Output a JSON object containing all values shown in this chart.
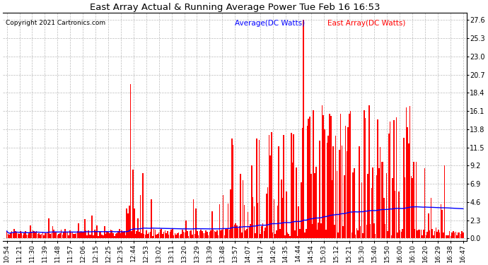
{
  "title": "East Array Actual & Running Average Power Tue Feb 16 16:53",
  "copyright": "Copyright 2021 Cartronics.com",
  "legend_avg": "Average(DC Watts)",
  "legend_east": "East Array(DC Watts)",
  "yticks": [
    0.0,
    2.3,
    4.6,
    6.9,
    9.2,
    11.5,
    13.8,
    16.1,
    18.4,
    20.7,
    23.0,
    25.3,
    27.6
  ],
  "ylim": [
    -0.3,
    28.5
  ],
  "xtick_labels": [
    "10:54",
    "11:21",
    "11:30",
    "11:39",
    "11:48",
    "11:57",
    "12:06",
    "12:15",
    "12:25",
    "12:35",
    "12:44",
    "12:53",
    "13:02",
    "13:11",
    "13:20",
    "13:29",
    "13:39",
    "13:48",
    "13:57",
    "14:07",
    "14:17",
    "14:26",
    "14:35",
    "14:44",
    "14:54",
    "15:03",
    "15:12",
    "15:21",
    "15:30",
    "15:40",
    "15:50",
    "16:00",
    "16:10",
    "16:20",
    "16:29",
    "16:38",
    "16:47"
  ],
  "background_color": "#ffffff",
  "grid_color": "#aaaaaa",
  "bar_color": "#ff0000",
  "avg_line_color": "#0000ff",
  "title_color": "#000000",
  "copyright_color": "#000000",
  "legend_avg_color": "#0000ff",
  "legend_east_color": "#ff0000",
  "figwidth": 6.9,
  "figheight": 3.75,
  "dpi": 100
}
